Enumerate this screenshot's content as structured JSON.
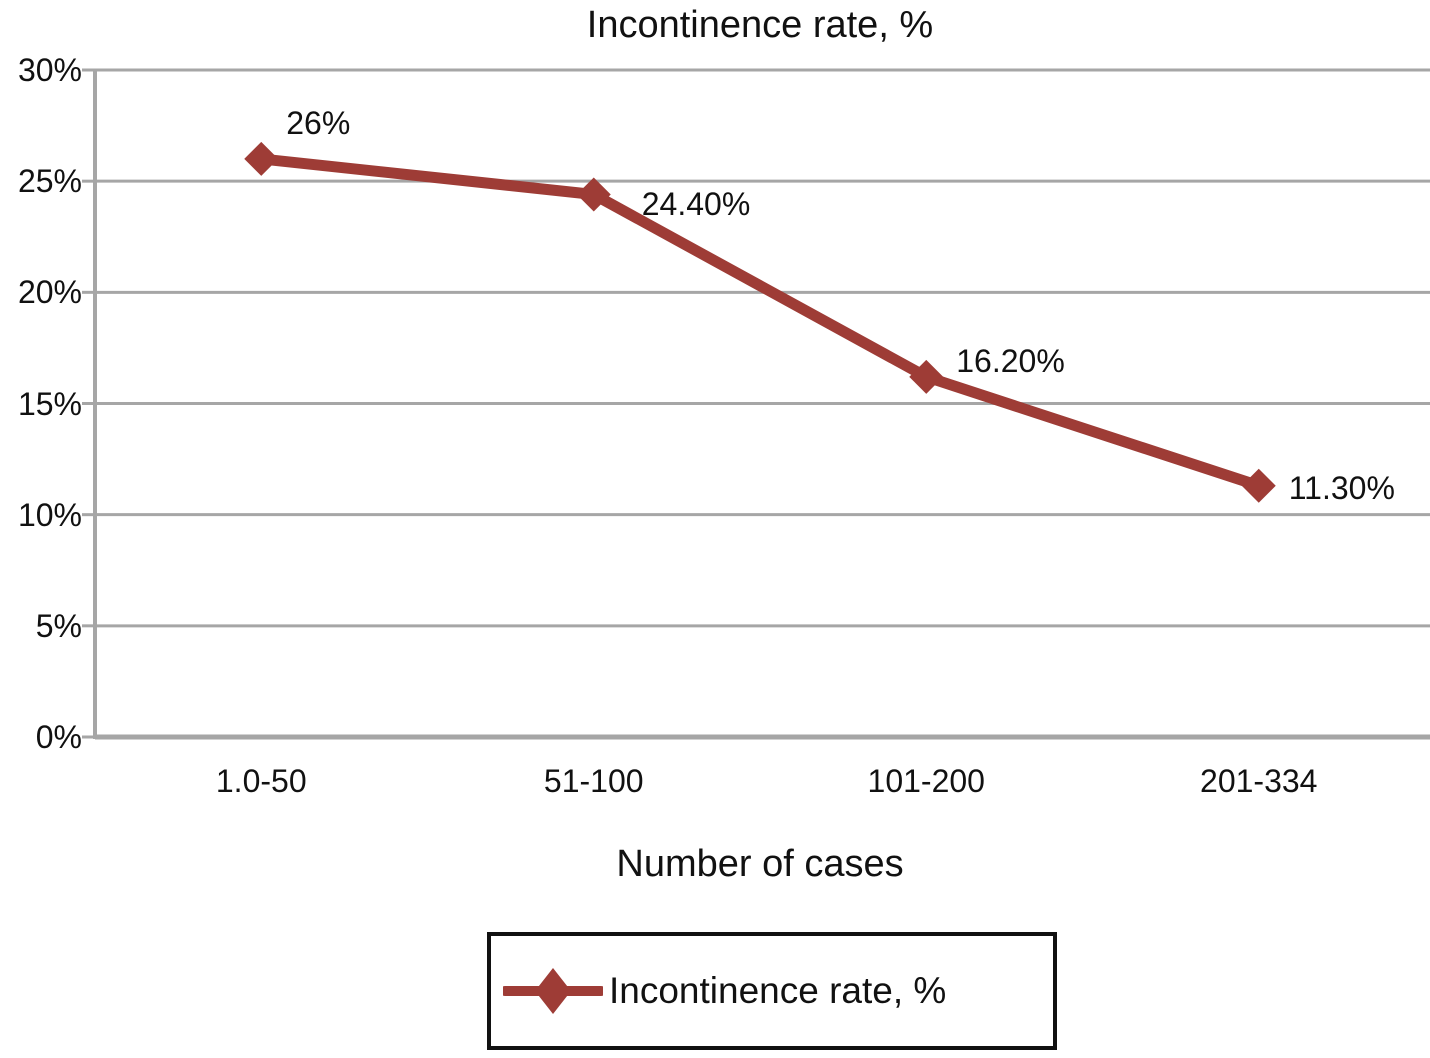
{
  "chart_data": {
    "type": "line",
    "title": "Incontinence rate, %",
    "categories": [
      "1.0-50",
      "51-100",
      "101-200",
      "201-334"
    ],
    "series": [
      {
        "name": "Incontinence rate, %",
        "values": [
          26,
          24.4,
          16.2,
          11.3
        ]
      }
    ],
    "data_labels": [
      "26%",
      "24.40%",
      "16.20%",
      "11.30%"
    ],
    "xlabel": "Number of cases",
    "ylabel": "",
    "ylim": [
      0,
      30
    ],
    "ytick_step": 5,
    "ytick_labels": [
      "0%",
      "5%",
      "10%",
      "15%",
      "20%",
      "25%",
      "30%"
    ],
    "grid": true,
    "legend": {
      "position": "bottom",
      "label": "Incontinence rate, %"
    },
    "colors": {
      "line": "#9e3c36",
      "grid": "#a6a6a6",
      "text": "#111111",
      "legend_border": "#111111",
      "background": "#ffffff"
    }
  }
}
